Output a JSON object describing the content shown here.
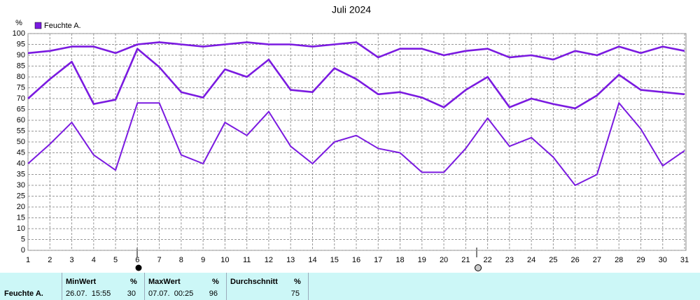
{
  "chart_data": {
    "type": "line",
    "title": "Juli 2024",
    "ylabel": "%",
    "legend": "Feuchte A.",
    "x": [
      1,
      2,
      3,
      4,
      5,
      6,
      7,
      8,
      9,
      10,
      11,
      12,
      13,
      14,
      15,
      16,
      17,
      18,
      19,
      20,
      21,
      22,
      23,
      24,
      25,
      26,
      27,
      28,
      29,
      30,
      31
    ],
    "xlim": [
      1,
      31
    ],
    "xticks": [
      1,
      2,
      3,
      4,
      5,
      6,
      7,
      8,
      9,
      10,
      11,
      12,
      13,
      14,
      15,
      16,
      17,
      18,
      19,
      20,
      21,
      22,
      23,
      24,
      25,
      26,
      27,
      28,
      29,
      30,
      31
    ],
    "ylim": [
      0,
      100
    ],
    "yticks": [
      0,
      5,
      10,
      15,
      20,
      25,
      30,
      35,
      40,
      45,
      50,
      55,
      60,
      65,
      70,
      75,
      80,
      85,
      90,
      95,
      100
    ],
    "grid": true,
    "series": [
      {
        "color": "#7a1ae0",
        "values": [
          91,
          92,
          94,
          94,
          91,
          95,
          96,
          95,
          94,
          95,
          96,
          95,
          95,
          94,
          95,
          96,
          89,
          93,
          93,
          90,
          92,
          93,
          89,
          90,
          88,
          92,
          90,
          94,
          91,
          94,
          92
        ]
      },
      {
        "color": "#7a1ae0",
        "values": [
          70,
          79,
          87,
          67.5,
          69.5,
          93,
          84.5,
          73,
          70.5,
          83.5,
          80,
          88,
          74,
          73,
          84,
          79,
          72,
          73,
          70.5,
          66,
          74,
          80,
          66,
          70,
          67.5,
          65.5,
          71.5,
          81,
          74,
          73,
          72
        ]
      },
      {
        "color": "#7a1ae0",
        "values": [
          40,
          49,
          59,
          44,
          37,
          68,
          68,
          44,
          40,
          59,
          53,
          64,
          48,
          40,
          50,
          53,
          47,
          45,
          36,
          36,
          47,
          61,
          48,
          52,
          43,
          30,
          35,
          68,
          56,
          39,
          46
        ]
      }
    ]
  },
  "stats": {
    "row_label": "Feuchte A.",
    "columns": [
      {
        "header": "MinWert",
        "unit": "%",
        "time": "26.07.  15:55",
        "value": 30
      },
      {
        "header": "MaxWert",
        "unit": "%",
        "time": "07.07.  00:25",
        "value": 96
      },
      {
        "header": "Durchschnitt",
        "unit": "%",
        "value": 75
      }
    ]
  }
}
